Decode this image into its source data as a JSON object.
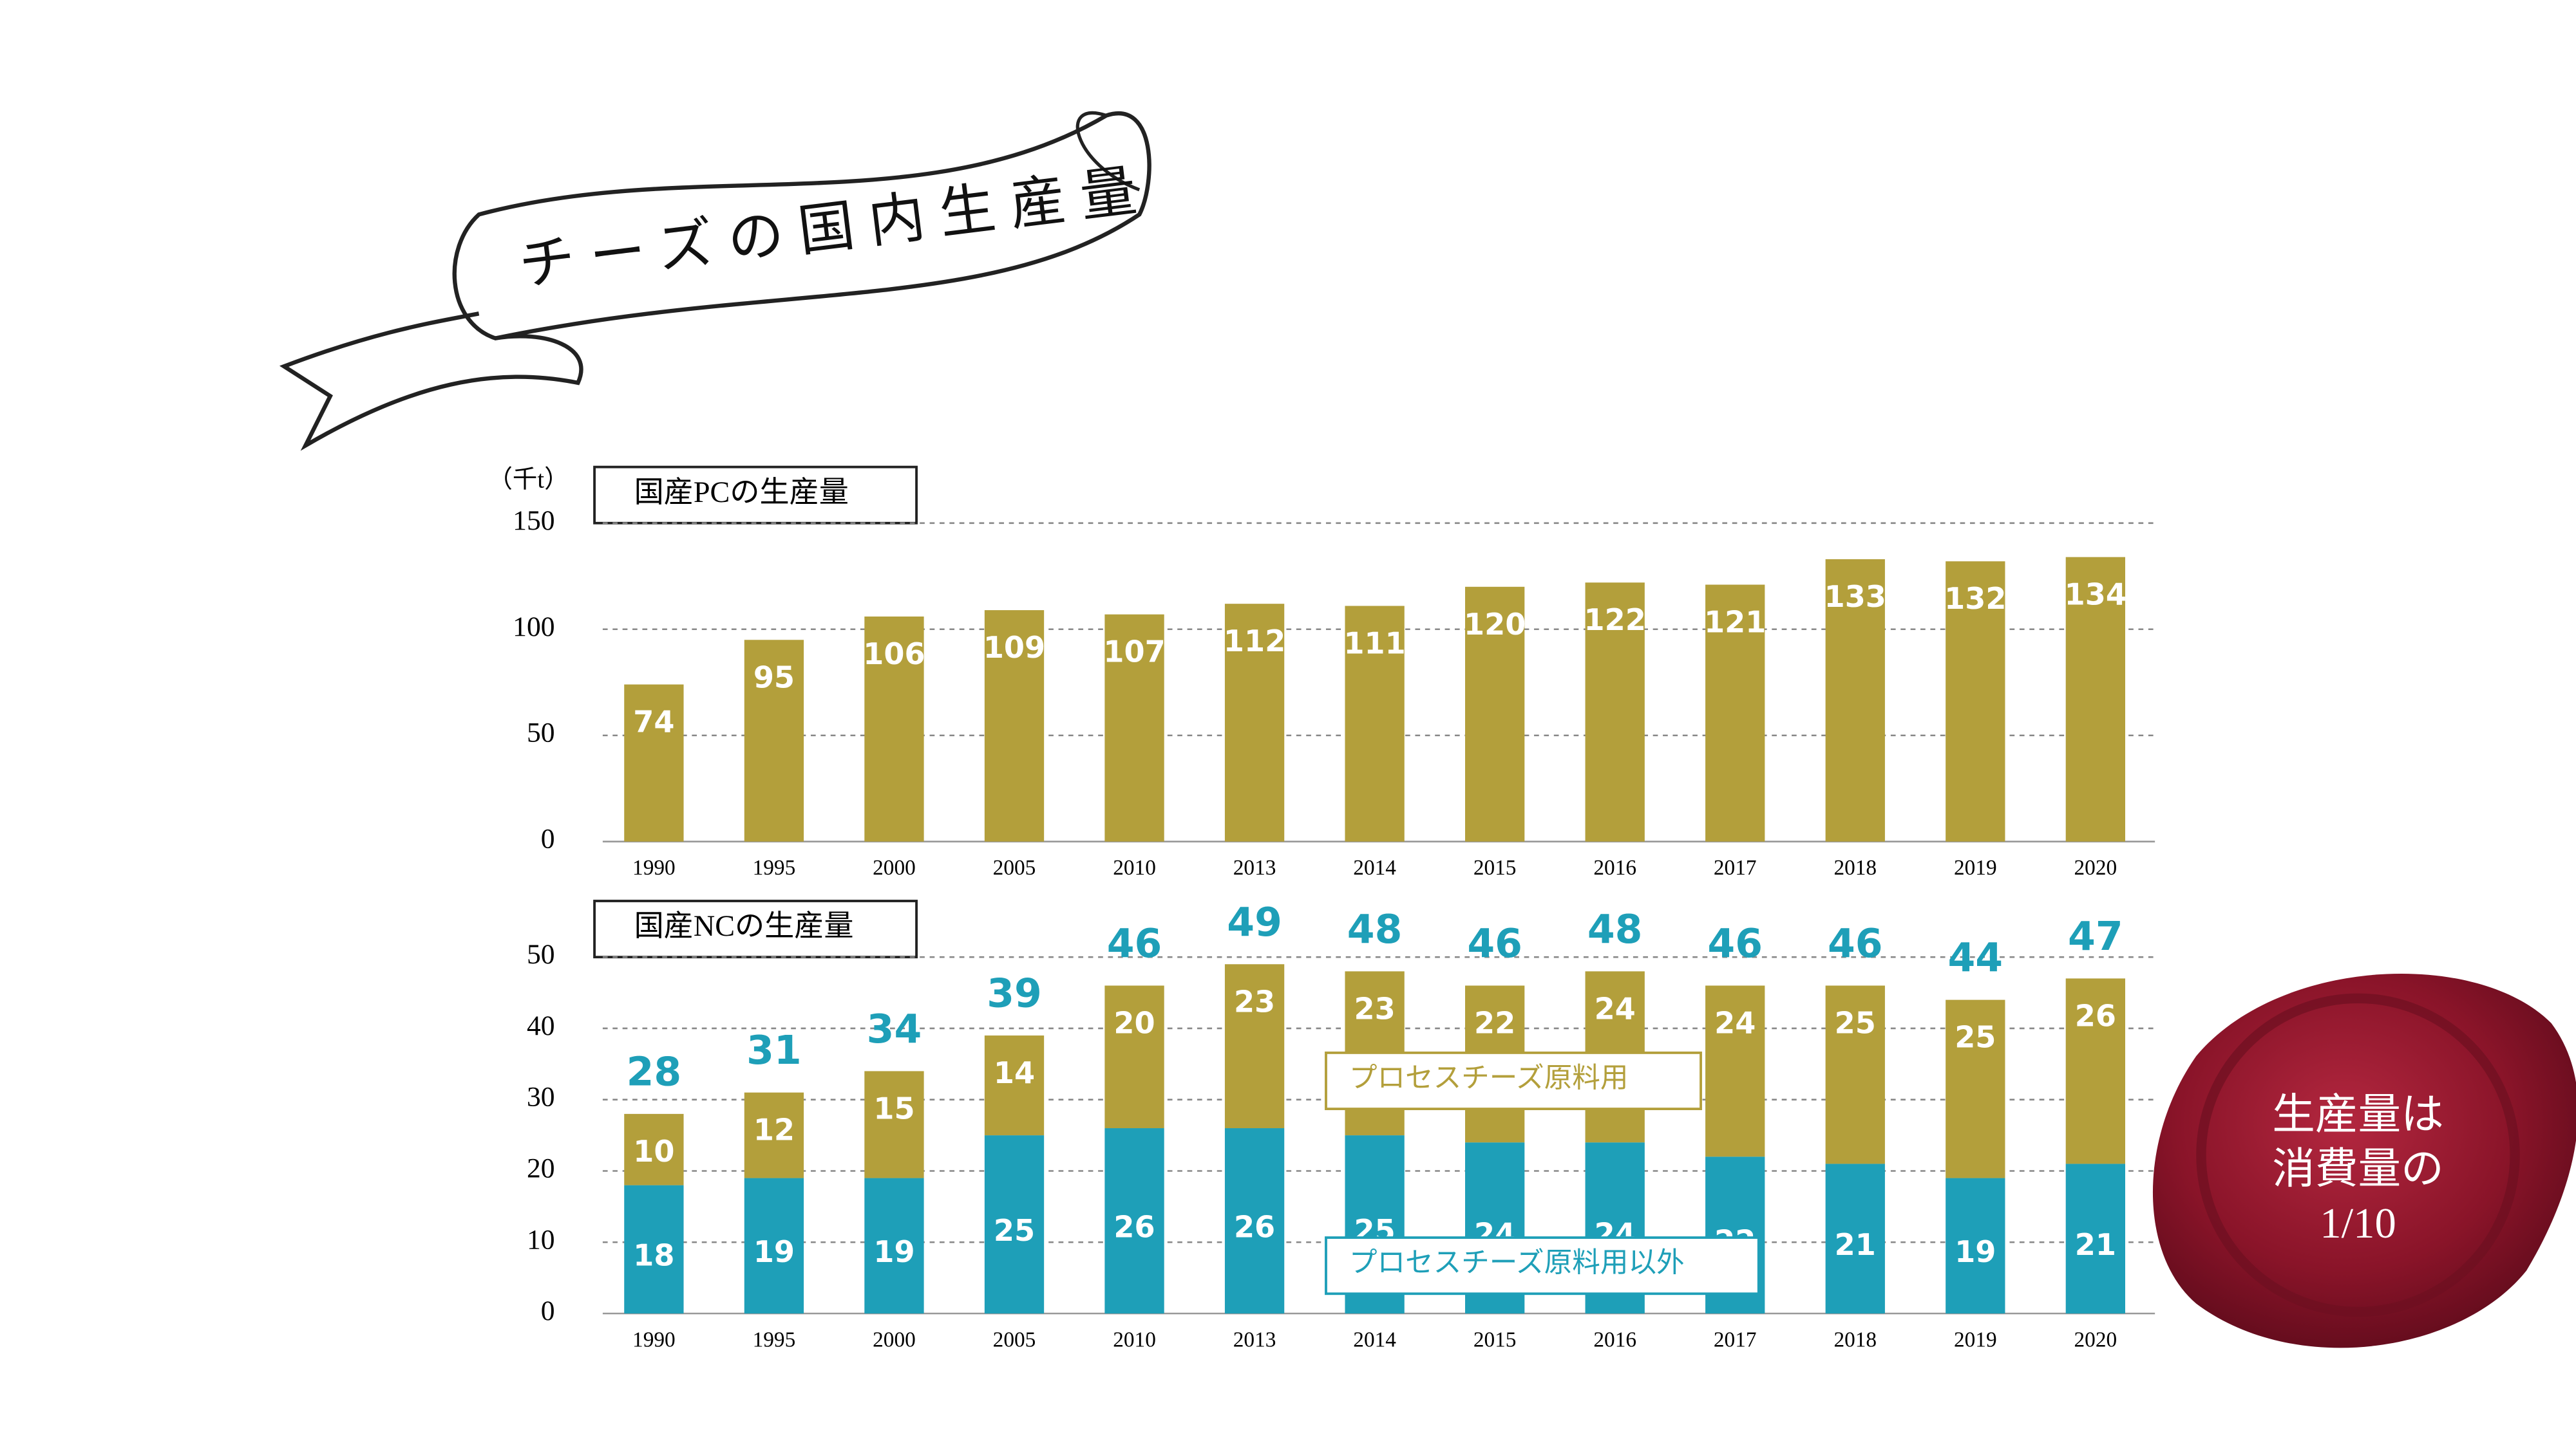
{
  "title": "チーズの国内生産量",
  "seal": [
    "生産量は",
    "消費量の",
    "1/10"
  ],
  "chart_data": [
    {
      "type": "bar",
      "title": "国産PCの生産量",
      "unit": "（千t）",
      "categories": [
        "1990",
        "1995",
        "2000",
        "2005",
        "2010",
        "2013",
        "2014",
        "2015",
        "2016",
        "2017",
        "2018",
        "2019",
        "2020"
      ],
      "values": [
        74,
        95,
        106,
        109,
        107,
        112,
        111,
        120,
        122,
        121,
        133,
        132,
        134
      ],
      "color": "#b39f3b",
      "ylim": [
        0,
        150
      ],
      "yticks": [
        0,
        50,
        100,
        150
      ],
      "grid": true
    },
    {
      "type": "stacked_bar",
      "title": "国産NCの生産量",
      "categories": [
        "1990",
        "1995",
        "2000",
        "2005",
        "2010",
        "2013",
        "2014",
        "2015",
        "2016",
        "2017",
        "2018",
        "2019",
        "2020"
      ],
      "series": [
        {
          "name": "プロセスチーズ原料用以外",
          "color": "#1e9fb8",
          "values": [
            18,
            19,
            19,
            25,
            26,
            26,
            25,
            24,
            24,
            22,
            21,
            19,
            21
          ]
        },
        {
          "name": "プロセスチーズ原料用",
          "color": "#b39f3b",
          "values": [
            10,
            12,
            15,
            14,
            20,
            23,
            23,
            22,
            24,
            24,
            25,
            25,
            26
          ]
        }
      ],
      "totals": [
        28,
        31,
        34,
        39,
        46,
        49,
        48,
        46,
        48,
        46,
        46,
        44,
        47
      ],
      "totals_color": "#1e9fb8",
      "ylim": [
        0,
        50
      ],
      "yticks": [
        0,
        10,
        20,
        30,
        40,
        50
      ],
      "grid": true
    }
  ]
}
